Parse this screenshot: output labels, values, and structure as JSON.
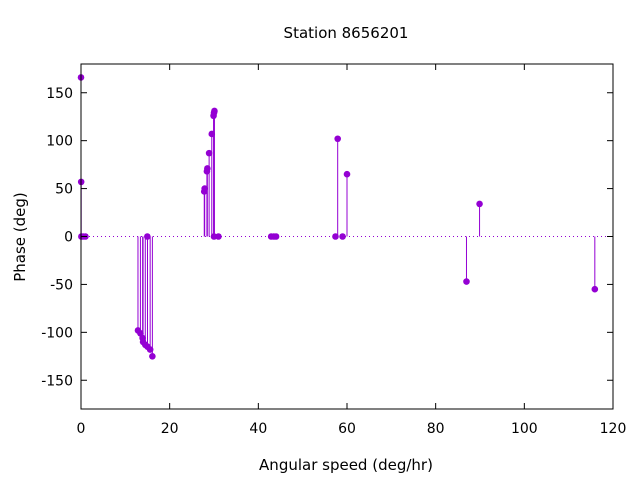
{
  "chart_data": {
    "type": "stem",
    "title": "Station 8656201",
    "xlabel": "Angular speed (deg/hr)",
    "ylabel": "Phase (deg)",
    "xlim": [
      0,
      120
    ],
    "ylim": [
      -180,
      180
    ],
    "xticks": [
      0,
      20,
      40,
      60,
      80,
      100,
      120
    ],
    "xtick_labels": [
      "0",
      "20",
      "40",
      "60",
      "80",
      "100",
      "120"
    ],
    "yticks": [
      -150,
      -100,
      -50,
      0,
      50,
      100,
      150
    ],
    "ytick_labels": [
      "-150",
      "-100",
      "-50",
      "0",
      "50",
      "100",
      "150"
    ],
    "zero_line": "dotted",
    "grid": false,
    "legend": "none",
    "color": "#9400d3",
    "points": [
      {
        "x": 0.0,
        "y": 166
      },
      {
        "x": 0.04,
        "y": 57
      },
      {
        "x": 0.08,
        "y": 0
      },
      {
        "x": 0.5,
        "y": 0
      },
      {
        "x": 1.0,
        "y": 0
      },
      {
        "x": 12.85,
        "y": -98
      },
      {
        "x": 13.4,
        "y": -101
      },
      {
        "x": 13.9,
        "y": -106
      },
      {
        "x": 14.0,
        "y": -110
      },
      {
        "x": 14.5,
        "y": -113
      },
      {
        "x": 14.96,
        "y": 0
      },
      {
        "x": 15.0,
        "y": -115
      },
      {
        "x": 15.6,
        "y": -118
      },
      {
        "x": 16.1,
        "y": -125
      },
      {
        "x": 27.8,
        "y": 47
      },
      {
        "x": 27.9,
        "y": 50
      },
      {
        "x": 28.4,
        "y": 68
      },
      {
        "x": 28.5,
        "y": 71
      },
      {
        "x": 28.9,
        "y": 87
      },
      {
        "x": 29.5,
        "y": 107
      },
      {
        "x": 29.9,
        "y": 126
      },
      {
        "x": 30.0,
        "y": 129
      },
      {
        "x": 30.1,
        "y": 131
      },
      {
        "x": 30.0,
        "y": 0
      },
      {
        "x": 31.0,
        "y": 0
      },
      {
        "x": 42.9,
        "y": 0
      },
      {
        "x": 43.5,
        "y": 0
      },
      {
        "x": 44.0,
        "y": 0
      },
      {
        "x": 57.4,
        "y": 0
      },
      {
        "x": 57.9,
        "y": 102
      },
      {
        "x": 59.0,
        "y": 0
      },
      {
        "x": 60.0,
        "y": 65
      },
      {
        "x": 86.95,
        "y": -47
      },
      {
        "x": 89.9,
        "y": 34
      },
      {
        "x": 115.9,
        "y": -55
      }
    ]
  }
}
